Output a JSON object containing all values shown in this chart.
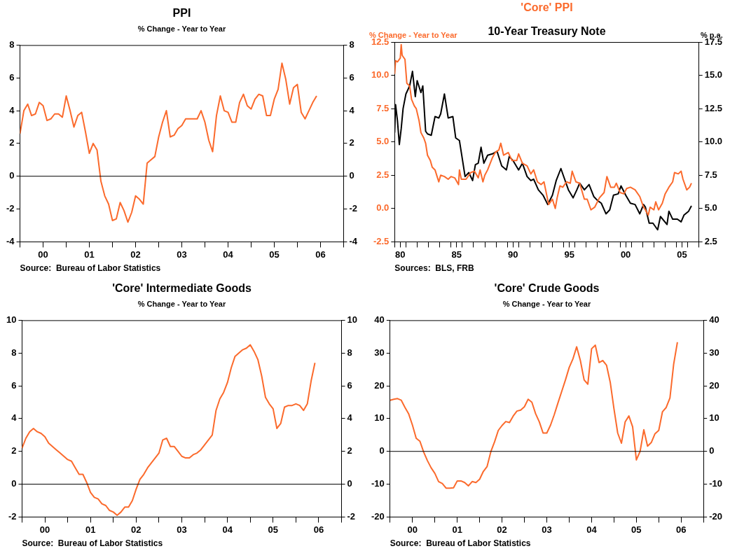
{
  "chart_data": [
    {
      "type": "line",
      "title": "PPI",
      "subtitle": "% Change - Year to Year",
      "marker": "none",
      "x": [
        "2000-01",
        "2000-02",
        "2000-03",
        "2000-04",
        "2000-05",
        "2000-06",
        "2000-07",
        "2000-08",
        "2000-09",
        "2000-10",
        "2000-11",
        "2000-12",
        "2001-01",
        "2001-02",
        "2001-03",
        "2001-04",
        "2001-05",
        "2001-06",
        "2001-07",
        "2001-08",
        "2001-09",
        "2001-10",
        "2001-11",
        "2001-12",
        "2002-01",
        "2002-02",
        "2002-03",
        "2002-04",
        "2002-05",
        "2002-06",
        "2002-07",
        "2002-08",
        "2002-09",
        "2002-10",
        "2002-11",
        "2002-12",
        "2003-01",
        "2003-02",
        "2003-03",
        "2003-04",
        "2003-05",
        "2003-06",
        "2003-07",
        "2003-08",
        "2003-09",
        "2003-10",
        "2003-11",
        "2003-12",
        "2004-01",
        "2004-02",
        "2004-03",
        "2004-04",
        "2004-05",
        "2004-06",
        "2004-07",
        "2004-08",
        "2004-09",
        "2004-10",
        "2004-11",
        "2004-12",
        "2005-01",
        "2005-02",
        "2005-03",
        "2005-04",
        "2005-05",
        "2005-06",
        "2005-07",
        "2005-08",
        "2005-09",
        "2005-10",
        "2005-11",
        "2005-12",
        "2006-01",
        "2006-02",
        "2006-03",
        "2006-04",
        "2006-05",
        "2006-06"
      ],
      "series": [
        {
          "color": "#fb6a2c",
          "values": [
            2.6,
            4.0,
            4.4,
            3.7,
            3.8,
            4.5,
            4.3,
            3.4,
            3.5,
            3.8,
            3.8,
            3.6,
            4.9,
            4.0,
            3.0,
            3.7,
            3.9,
            2.7,
            1.4,
            2.0,
            1.6,
            -0.3,
            -1.2,
            -1.7,
            -2.7,
            -2.6,
            -1.6,
            -2.1,
            -2.8,
            -2.2,
            -1.2,
            -1.4,
            -1.7,
            0.8,
            1.0,
            1.2,
            2.4,
            3.3,
            4.0,
            2.4,
            2.5,
            2.9,
            3.1,
            3.5,
            3.5,
            3.5,
            3.5,
            4.0,
            3.3,
            2.2,
            1.5,
            3.7,
            4.9,
            4.0,
            3.9,
            3.3,
            3.3,
            4.5,
            5.0,
            4.3,
            4.1,
            4.7,
            5.0,
            4.9,
            3.7,
            3.7,
            4.7,
            5.3,
            6.9,
            5.9,
            4.4,
            5.4,
            5.6,
            3.9,
            3.5,
            4.0,
            4.5,
            4.9
          ]
        }
      ],
      "xlim": [
        "2000-01",
        "2007-01"
      ],
      "xticks": [
        {
          "value": "2000-01",
          "label": null
        },
        {
          "value": "2000-07",
          "label": "00"
        },
        {
          "value": "2001-01",
          "label": null
        },
        {
          "value": "2001-07",
          "label": "01"
        },
        {
          "value": "2002-01",
          "label": null
        },
        {
          "value": "2002-07",
          "label": "02"
        },
        {
          "value": "2003-01",
          "label": null
        },
        {
          "value": "2003-07",
          "label": "03"
        },
        {
          "value": "2004-01",
          "label": null
        },
        {
          "value": "2004-07",
          "label": "04"
        },
        {
          "value": "2005-01",
          "label": null
        },
        {
          "value": "2005-07",
          "label": "05"
        },
        {
          "value": "2006-01",
          "label": null
        },
        {
          "value": "2006-07",
          "label": "06"
        },
        {
          "value": "2007-01",
          "label": null
        }
      ],
      "ylim": [
        -4,
        8
      ],
      "yticks": [
        -4,
        -2,
        0,
        2,
        4,
        6,
        8
      ],
      "y2lim": [
        -4,
        8
      ],
      "y2ticks": [
        -4,
        -2,
        0,
        2,
        4,
        6,
        8
      ],
      "ref_lines": [
        {
          "axis": "y",
          "value": 0,
          "color": "#000000"
        }
      ],
      "annotations": [
        "Source:  Bureau of Labor Statistics"
      ]
    },
    {
      "type": "line",
      "legend": "top",
      "marker": "none",
      "ylabel": "% Change - Year to Year",
      "y2label": "% p.a.",
      "series": [
        {
          "name": "'Core' PPI",
          "color": "#fb6a2c",
          "x": [
            "1980-01",
            "1980-02",
            "1980-04",
            "1980-07",
            "1980-08",
            "1980-09",
            "1980-12",
            "1981-02",
            "1981-05",
            "1981-07",
            "1981-10",
            "1981-12",
            "1982-03",
            "1982-05",
            "1982-08",
            "1982-10",
            "1982-12",
            "1983-03",
            "1983-05",
            "1983-08",
            "1983-12",
            "1984-02",
            "1984-06",
            "1984-10",
            "1985-01",
            "1985-05",
            "1985-09",
            "1985-10",
            "1985-12",
            "1986-05",
            "1986-10",
            "1987-02",
            "1987-06",
            "1987-08",
            "1987-11",
            "1988-01",
            "1988-04",
            "1988-09",
            "1988-12",
            "1989-04",
            "1989-06",
            "1989-09",
            "1990-02",
            "1990-06",
            "1990-11",
            "1991-01",
            "1991-05",
            "1991-10",
            "1992-02",
            "1992-05",
            "1992-09",
            "1993-01",
            "1993-04",
            "1993-09",
            "1994-01",
            "1994-04",
            "1994-06",
            "1994-09",
            "1994-12",
            "1995-04",
            "1995-08",
            "1995-10",
            "1996-02",
            "1996-06",
            "1996-11",
            "1997-02",
            "1997-06",
            "1997-10",
            "1998-03",
            "1998-08",
            "1998-11",
            "1999-03",
            "1999-07",
            "1999-09",
            "2000-01",
            "2000-05",
            "2000-08",
            "2000-12",
            "2001-05",
            "2001-10",
            "2002-02",
            "2002-04",
            "2002-07",
            "2002-09",
            "2003-01",
            "2003-03",
            "2003-06",
            "2003-10",
            "2004-01",
            "2004-05",
            "2004-09",
            "2004-11",
            "2005-03",
            "2005-06",
            "2005-08",
            "2005-12",
            "2006-03",
            "2006-05"
          ],
          "values": [
            10.1,
            11.1,
            11.0,
            11.3,
            12.3,
            11.5,
            11.2,
            9.4,
            9.2,
            8.2,
            7.7,
            7.5,
            6.6,
            5.7,
            5.3,
            4.9,
            4.0,
            3.6,
            3.1,
            2.9,
            2.0,
            2.5,
            2.4,
            2.2,
            2.4,
            2.3,
            1.8,
            2.9,
            2.2,
            2.2,
            2.7,
            2.8,
            2.3,
            2.9,
            2.0,
            2.5,
            2.9,
            3.8,
            4.2,
            4.4,
            4.9,
            4.0,
            4.2,
            3.6,
            3.6,
            4.1,
            3.4,
            3.2,
            2.6,
            2.9,
            2.0,
            1.8,
            2.0,
            0.3,
            0.7,
            0.0,
            0.8,
            1.7,
            1.6,
            2.0,
            1.9,
            2.8,
            2.0,
            1.9,
            0.7,
            0.7,
            -0.1,
            0.1,
            0.8,
            1.2,
            2.4,
            1.6,
            1.6,
            1.9,
            1.2,
            1.1,
            1.5,
            1.6,
            1.4,
            0.9,
            0.1,
            -0.1,
            -0.5,
            0.1,
            -0.1,
            0.5,
            -0.1,
            0.4,
            1.1,
            1.6,
            2.0,
            2.7,
            2.6,
            2.8,
            2.2,
            1.4,
            1.6,
            1.9
          ]
        },
        {
          "name": "10-Year Treasury Note",
          "color": "#000000",
          "axis": "y2",
          "x": [
            "1980-01",
            "1980-02",
            "1980-04",
            "1980-06",
            "1980-08",
            "1980-10",
            "1981-01",
            "1981-05",
            "1981-08",
            "1981-11",
            "1982-01",
            "1982-05",
            "1982-07",
            "1982-10",
            "1982-12",
            "1983-04",
            "1983-08",
            "1983-12",
            "1984-02",
            "1984-06",
            "1984-10",
            "1985-03",
            "1985-06",
            "1985-10",
            "1985-12",
            "1986-04",
            "1986-08",
            "1986-12",
            "1987-03",
            "1987-06",
            "1987-09",
            "1987-12",
            "1988-04",
            "1988-09",
            "1989-02",
            "1989-07",
            "1989-12",
            "1990-03",
            "1990-07",
            "1991-01",
            "1991-05",
            "1991-10",
            "1992-02",
            "1992-05",
            "1992-10",
            "1993-03",
            "1993-08",
            "1994-01",
            "1994-05",
            "1994-10",
            "1995-02",
            "1995-06",
            "1995-11",
            "1996-03",
            "1996-06",
            "1996-11",
            "1997-04",
            "1997-09",
            "1998-01",
            "1998-05",
            "1998-10",
            "1999-02",
            "1999-06",
            "1999-11",
            "2000-02",
            "2000-07",
            "2000-12",
            "2001-05",
            "2001-10",
            "2002-02",
            "2002-04",
            "2002-08",
            "2002-12",
            "2003-05",
            "2003-08",
            "2004-03",
            "2004-05",
            "2004-09",
            "2005-02",
            "2005-06",
            "2005-09",
            "2006-02",
            "2006-05"
          ],
          "values": [
            10.7,
            12.8,
            11.6,
            9.8,
            11.0,
            12.5,
            13.6,
            14.2,
            15.3,
            13.4,
            14.6,
            13.7,
            14.2,
            10.8,
            10.6,
            10.5,
            11.9,
            11.8,
            12.1,
            13.6,
            11.8,
            11.9,
            10.3,
            10.1,
            9.2,
            7.4,
            7.7,
            7.1,
            8.3,
            8.4,
            9.6,
            8.4,
            9.0,
            9.1,
            9.3,
            8.2,
            7.9,
            8.9,
            8.6,
            7.9,
            8.4,
            7.4,
            7.1,
            7.2,
            6.4,
            6.0,
            5.3,
            6.0,
            7.1,
            8.0,
            7.2,
            6.4,
            5.8,
            6.4,
            6.9,
            6.4,
            6.8,
            5.9,
            5.6,
            5.4,
            4.6,
            4.9,
            6.0,
            6.1,
            6.7,
            6.0,
            5.4,
            5.3,
            4.6,
            5.3,
            5.1,
            3.9,
            3.9,
            3.4,
            4.4,
            3.8,
            4.8,
            4.2,
            4.2,
            4.0,
            4.5,
            4.8,
            5.2
          ]
        }
      ],
      "xlim": [
        "1980-01",
        "2007-01"
      ],
      "xticks": [
        {
          "value": "1980-01",
          "label": null
        },
        {
          "value": "1980-07",
          "label": "80"
        },
        {
          "value": "1981-01",
          "label": null
        },
        {
          "value": "1982-01",
          "label": null
        },
        {
          "value": "1983-01",
          "label": null
        },
        {
          "value": "1984-01",
          "label": null
        },
        {
          "value": "1985-01",
          "label": null
        },
        {
          "value": "1985-07",
          "label": "85"
        },
        {
          "value": "1986-01",
          "label": null
        },
        {
          "value": "1987-01",
          "label": null
        },
        {
          "value": "1988-01",
          "label": null
        },
        {
          "value": "1989-01",
          "label": null
        },
        {
          "value": "1990-01",
          "label": null
        },
        {
          "value": "1990-07",
          "label": "90"
        },
        {
          "value": "1991-01",
          "label": null
        },
        {
          "value": "1992-01",
          "label": null
        },
        {
          "value": "1993-01",
          "label": null
        },
        {
          "value": "1994-01",
          "label": null
        },
        {
          "value": "1995-01",
          "label": null
        },
        {
          "value": "1995-07",
          "label": "95"
        },
        {
          "value": "1996-01",
          "label": null
        },
        {
          "value": "1997-01",
          "label": null
        },
        {
          "value": "1998-01",
          "label": null
        },
        {
          "value": "1999-01",
          "label": null
        },
        {
          "value": "2000-01",
          "label": null
        },
        {
          "value": "2000-07",
          "label": "00"
        },
        {
          "value": "2001-01",
          "label": null
        },
        {
          "value": "2002-01",
          "label": null
        },
        {
          "value": "2003-01",
          "label": null
        },
        {
          "value": "2004-01",
          "label": null
        },
        {
          "value": "2005-01",
          "label": null
        },
        {
          "value": "2005-07",
          "label": "05"
        },
        {
          "value": "2006-01",
          "label": null
        },
        {
          "value": "2007-01",
          "label": null
        }
      ],
      "ylim": [
        -2.5,
        12.5
      ],
      "yticks": [
        {
          "value": -2.5,
          "label": "-2.5"
        },
        {
          "value": 0,
          "label": "0.0"
        },
        {
          "value": 2.5,
          "label": "2.5"
        },
        {
          "value": 5,
          "label": "5.0"
        },
        {
          "value": 7.5,
          "label": "7.5"
        },
        {
          "value": 10,
          "label": "10.0"
        },
        {
          "value": 12.5,
          "label": "12.5"
        }
      ],
      "y2lim": [
        2.5,
        17.5
      ],
      "y2ticks": [
        2.5,
        {
          "value": 5,
          "label": "5.0"
        },
        7.5,
        {
          "value": 10,
          "label": "10.0"
        },
        12.5,
        {
          "value": 15,
          "label": "15.0"
        },
        17.5
      ],
      "annotations": [
        "Sources:  BLS, FRB"
      ]
    },
    {
      "type": "line",
      "title": "'Core' Intermediate Goods",
      "subtitle": "% Change - Year to Year",
      "marker": "none",
      "x": [
        "2000-01",
        "2000-02",
        "2000-03",
        "2000-04",
        "2000-05",
        "2000-06",
        "2000-07",
        "2000-08",
        "2000-09",
        "2000-10",
        "2000-11",
        "2000-12",
        "2001-01",
        "2001-02",
        "2001-03",
        "2001-04",
        "2001-05",
        "2001-06",
        "2001-07",
        "2001-08",
        "2001-09",
        "2001-10",
        "2001-11",
        "2001-12",
        "2002-01",
        "2002-02",
        "2002-03",
        "2002-04",
        "2002-05",
        "2002-06",
        "2002-07",
        "2002-08",
        "2002-09",
        "2002-10",
        "2002-11",
        "2002-12",
        "2003-01",
        "2003-02",
        "2003-03",
        "2003-04",
        "2003-05",
        "2003-06",
        "2003-07",
        "2003-08",
        "2003-09",
        "2003-10",
        "2003-11",
        "2003-12",
        "2004-01",
        "2004-02",
        "2004-03",
        "2004-04",
        "2004-05",
        "2004-06",
        "2004-07",
        "2004-08",
        "2004-09",
        "2004-10",
        "2004-11",
        "2004-12",
        "2005-01",
        "2005-02",
        "2005-03",
        "2005-04",
        "2005-05",
        "2005-06",
        "2005-07",
        "2005-08",
        "2005-09",
        "2005-10",
        "2005-11",
        "2005-12",
        "2006-01",
        "2006-02",
        "2006-03",
        "2006-04",
        "2006-05",
        "2006-06"
      ],
      "series": [
        {
          "color": "#fb6a2c",
          "values": [
            2.2,
            2.8,
            3.2,
            3.4,
            3.2,
            3.1,
            2.9,
            2.5,
            2.3,
            2.1,
            1.9,
            1.7,
            1.5,
            1.4,
            1.0,
            0.6,
            0.6,
            0.1,
            -0.5,
            -0.8,
            -0.9,
            -1.2,
            -1.3,
            -1.6,
            -1.7,
            -1.9,
            -1.7,
            -1.4,
            -1.4,
            -1.0,
            -0.3,
            0.3,
            0.6,
            1.0,
            1.3,
            1.6,
            1.9,
            2.7,
            2.8,
            2.3,
            2.3,
            2.0,
            1.7,
            1.6,
            1.6,
            1.8,
            1.9,
            2.1,
            2.4,
            2.7,
            3.0,
            4.5,
            5.2,
            5.6,
            6.2,
            7.1,
            7.8,
            8.0,
            8.2,
            8.3,
            8.5,
            8.1,
            7.6,
            6.6,
            5.3,
            4.9,
            4.6,
            3.4,
            3.7,
            4.7,
            4.8,
            4.8,
            4.9,
            4.8,
            4.5,
            4.9,
            6.3,
            7.4
          ]
        }
      ],
      "xlim": [
        "2000-01",
        "2007-01"
      ],
      "xticks": [
        {
          "value": "2000-01",
          "label": null
        },
        {
          "value": "2000-07",
          "label": "00"
        },
        {
          "value": "2001-01",
          "label": null
        },
        {
          "value": "2001-07",
          "label": "01"
        },
        {
          "value": "2002-01",
          "label": null
        },
        {
          "value": "2002-07",
          "label": "02"
        },
        {
          "value": "2003-01",
          "label": null
        },
        {
          "value": "2003-07",
          "label": "03"
        },
        {
          "value": "2004-01",
          "label": null
        },
        {
          "value": "2004-07",
          "label": "04"
        },
        {
          "value": "2005-01",
          "label": null
        },
        {
          "value": "2005-07",
          "label": "05"
        },
        {
          "value": "2006-01",
          "label": null
        },
        {
          "value": "2006-07",
          "label": "06"
        },
        {
          "value": "2007-01",
          "label": null
        }
      ],
      "ylim": [
        -2,
        10
      ],
      "yticks": [
        -2,
        0,
        2,
        4,
        6,
        8,
        10
      ],
      "y2lim": [
        -2,
        10
      ],
      "y2ticks": [
        -2,
        0,
        2,
        4,
        6,
        8,
        10
      ],
      "ref_lines": [
        {
          "axis": "y",
          "value": 0,
          "color": "#000000"
        }
      ],
      "annotations": [
        "Source:  Bureau of Labor Statistics"
      ]
    },
    {
      "type": "line",
      "title": "'Core' Crude Goods",
      "subtitle": "% Change - Year to Year",
      "marker": "none",
      "x": [
        "2000-01",
        "2000-02",
        "2000-03",
        "2000-04",
        "2000-05",
        "2000-06",
        "2000-07",
        "2000-08",
        "2000-09",
        "2000-10",
        "2000-11",
        "2000-12",
        "2001-01",
        "2001-02",
        "2001-03",
        "2001-04",
        "2001-05",
        "2001-06",
        "2001-07",
        "2001-08",
        "2001-09",
        "2001-10",
        "2001-11",
        "2001-12",
        "2002-01",
        "2002-02",
        "2002-03",
        "2002-04",
        "2002-05",
        "2002-06",
        "2002-07",
        "2002-08",
        "2002-09",
        "2002-10",
        "2002-11",
        "2002-12",
        "2003-01",
        "2003-02",
        "2003-03",
        "2003-04",
        "2003-05",
        "2003-06",
        "2003-07",
        "2003-08",
        "2003-09",
        "2003-10",
        "2003-11",
        "2003-12",
        "2004-01",
        "2004-02",
        "2004-03",
        "2004-04",
        "2004-05",
        "2004-06",
        "2004-07",
        "2004-08",
        "2004-09",
        "2004-10",
        "2004-11",
        "2004-12",
        "2005-01",
        "2005-02",
        "2005-03",
        "2005-04",
        "2005-05",
        "2005-06",
        "2005-07",
        "2005-08",
        "2005-09",
        "2005-10",
        "2005-11",
        "2005-12",
        "2006-01",
        "2006-02",
        "2006-03",
        "2006-04",
        "2006-05",
        "2006-06"
      ],
      "series": [
        {
          "color": "#fb6a2c",
          "values": [
            15.6,
            15.9,
            16.1,
            15.6,
            13.4,
            11.4,
            8.0,
            4.0,
            3.1,
            -0.2,
            -2.8,
            -5.0,
            -6.7,
            -9.2,
            -9.8,
            -11.2,
            -11.2,
            -11.1,
            -9.0,
            -9.0,
            -9.5,
            -10.5,
            -9.2,
            -9.5,
            -8.5,
            -6.1,
            -4.6,
            -0.1,
            2.9,
            6.4,
            7.9,
            9.1,
            8.8,
            10.8,
            12.3,
            12.6,
            13.6,
            15.9,
            15.0,
            11.5,
            9.0,
            5.6,
            5.6,
            8.0,
            11.2,
            14.8,
            18.3,
            21.8,
            25.6,
            28.2,
            31.9,
            27.7,
            21.8,
            20.5,
            31.3,
            32.4,
            27.1,
            27.7,
            26.3,
            21.1,
            13.0,
            5.6,
            2.5,
            9.0,
            10.8,
            7.5,
            -2.6,
            0.0,
            6.6,
            1.6,
            2.7,
            5.4,
            6.4,
            12.1,
            13.4,
            16.3,
            26.6,
            33.3
          ]
        }
      ],
      "xlim": [
        "2000-01",
        "2007-01"
      ],
      "xticks": [
        {
          "value": "2000-01",
          "label": null
        },
        {
          "value": "2000-07",
          "label": "00"
        },
        {
          "value": "2001-01",
          "label": null
        },
        {
          "value": "2001-07",
          "label": "01"
        },
        {
          "value": "2002-01",
          "label": null
        },
        {
          "value": "2002-07",
          "label": "02"
        },
        {
          "value": "2003-01",
          "label": null
        },
        {
          "value": "2003-07",
          "label": "03"
        },
        {
          "value": "2004-01",
          "label": null
        },
        {
          "value": "2004-07",
          "label": "04"
        },
        {
          "value": "2005-01",
          "label": null
        },
        {
          "value": "2005-07",
          "label": "05"
        },
        {
          "value": "2006-01",
          "label": null
        },
        {
          "value": "2006-07",
          "label": "06"
        },
        {
          "value": "2007-01",
          "label": null
        }
      ],
      "ylim": [
        -20,
        40
      ],
      "yticks": [
        -20,
        -10,
        0,
        10,
        20,
        30,
        40
      ],
      "y2lim": [
        -20,
        40
      ],
      "y2ticks": [
        -20,
        -10,
        0,
        10,
        20,
        30,
        40
      ],
      "ref_lines": [
        {
          "axis": "y",
          "value": 0,
          "color": "#000000"
        }
      ],
      "annotations": [
        "Source:  Bureau of Labor Statistics"
      ]
    }
  ]
}
